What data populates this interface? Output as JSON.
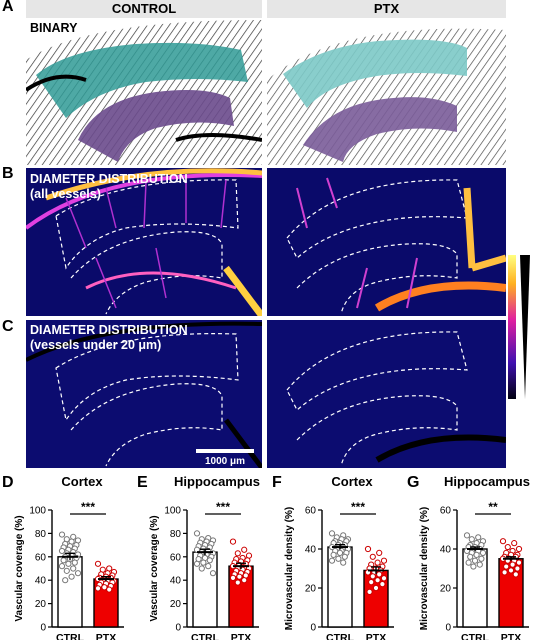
{
  "panel_letters": [
    "A",
    "B",
    "C",
    "D",
    "E",
    "F",
    "G"
  ],
  "headers": {
    "control": "CONTROL",
    "ptx": "PTX"
  },
  "row_labels": {
    "a": "BINARY",
    "b_line1": "DIAMETER DISTRIBUTION",
    "b_line2": "(all vessels)",
    "c_line1": "DIAMETER DISTRIBUTION",
    "c_line2": "(vessels under 20 μm)"
  },
  "scale_bar": "1000 μm",
  "colors": {
    "ctrl_bar": "#ffffff",
    "ptx_bar": "#ee0000",
    "cortex_fill": "#2f9a95",
    "hippo_fill": "#6a4a8c",
    "heat_bg": "#0a0a6a"
  },
  "chart_data": [
    {
      "type": "bar",
      "panel": "D",
      "title": "Cortex",
      "ylabel": "Vascular coverage (%)",
      "categories": [
        "CTRL",
        "PTX"
      ],
      "values": [
        60,
        41
      ],
      "errors": [
        3,
        2
      ],
      "ylim": [
        0,
        100
      ],
      "yticks": [
        0,
        20,
        40,
        60,
        80,
        100
      ],
      "significance": "***",
      "points": [
        [
          79,
          77,
          75,
          74,
          73,
          71,
          70,
          69,
          68,
          67,
          66,
          65,
          64,
          63,
          62,
          61,
          60,
          59,
          58,
          57,
          55,
          54,
          52,
          50,
          48,
          46,
          43,
          40
        ],
        [
          54,
          50,
          49,
          47,
          46,
          45,
          44,
          43,
          42,
          42,
          41,
          41,
          40,
          40,
          39,
          39,
          38,
          38,
          37,
          36,
          35,
          34,
          33,
          32
        ]
      ]
    },
    {
      "type": "bar",
      "panel": "E",
      "title": "Hippocampus",
      "ylabel": "Vascular coverage (%)",
      "categories": [
        "CTRL",
        "PTX"
      ],
      "values": [
        64,
        52
      ],
      "errors": [
        2.5,
        2.5
      ],
      "ylim": [
        0,
        100
      ],
      "yticks": [
        0,
        20,
        40,
        60,
        80,
        100
      ],
      "significance": "***",
      "points": [
        [
          80,
          76,
          75,
          74,
          73,
          72,
          71,
          70,
          69,
          68,
          67,
          66,
          65,
          64,
          63,
          62,
          61,
          60,
          59,
          58,
          57,
          55,
          54,
          52,
          50,
          46
        ],
        [
          73,
          66,
          63,
          61,
          59,
          58,
          57,
          56,
          55,
          54,
          53,
          52,
          51,
          50,
          50,
          49,
          48,
          47,
          46,
          45,
          44,
          43,
          42,
          40,
          38
        ]
      ]
    },
    {
      "type": "bar",
      "panel": "F",
      "title": "Cortex",
      "ylabel": "Microvascular density (%)",
      "categories": [
        "CTRL",
        "PTX"
      ],
      "values": [
        41,
        29
      ],
      "errors": [
        1.2,
        1.8
      ],
      "ylim": [
        0,
        60
      ],
      "yticks": [
        0,
        20,
        40,
        60
      ],
      "significance": "***",
      "points": [
        [
          48,
          47,
          46,
          45,
          45,
          44,
          44,
          43,
          43,
          42,
          42,
          41,
          41,
          40,
          40,
          39,
          39,
          38,
          38,
          37,
          36,
          35,
          34,
          33
        ],
        [
          40,
          38,
          36,
          34,
          33,
          32,
          31,
          30,
          30,
          29,
          28,
          28,
          27,
          26,
          25,
          24,
          23,
          22,
          20,
          18
        ]
      ]
    },
    {
      "type": "bar",
      "panel": "G",
      "title": "Hippocampus",
      "ylabel": "Microvascular density (%)",
      "categories": [
        "CTRL",
        "PTX"
      ],
      "values": [
        40,
        35
      ],
      "errors": [
        1.0,
        1.0
      ],
      "ylim": [
        0,
        60
      ],
      "yticks": [
        0,
        20,
        40,
        60
      ],
      "significance": "**",
      "points": [
        [
          47,
          46,
          45,
          44,
          43,
          42,
          42,
          41,
          41,
          40,
          40,
          39,
          39,
          38,
          38,
          37,
          36,
          35,
          34,
          33,
          32,
          31
        ],
        [
          44,
          43,
          41,
          40,
          39,
          38,
          37,
          37,
          36,
          36,
          35,
          35,
          34,
          34,
          33,
          32,
          31,
          30,
          29,
          28,
          27
        ]
      ]
    }
  ]
}
